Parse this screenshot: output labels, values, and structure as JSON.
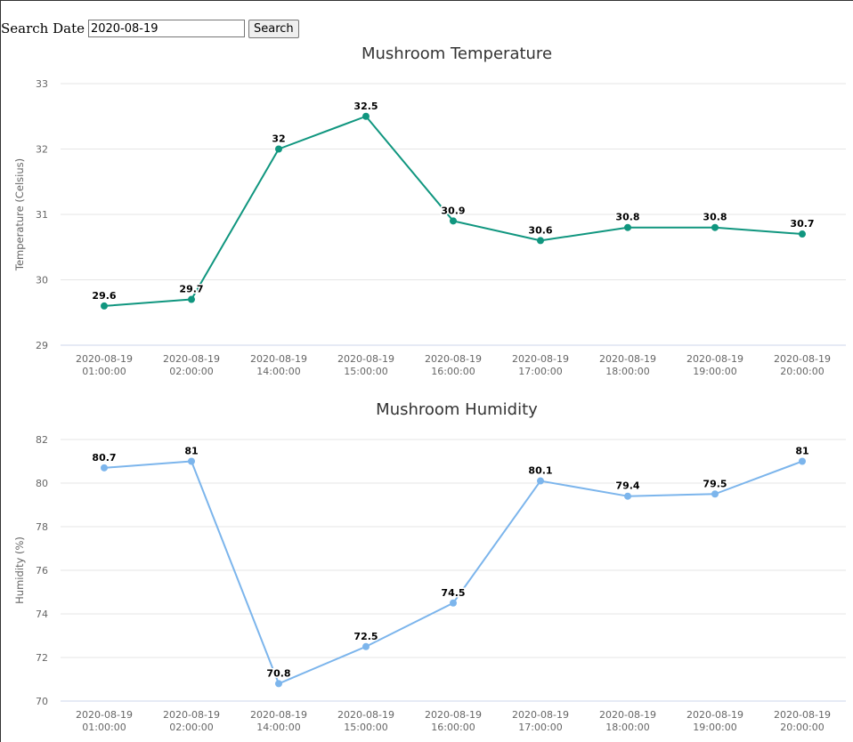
{
  "search": {
    "label": "Search Date",
    "value": "2020-08-19",
    "button_label": "Search"
  },
  "chart_data": [
    {
      "type": "line",
      "title": "Mushroom Temperature",
      "ylabel": "Temperature (Celsius)",
      "xlabel": "",
      "categories": [
        [
          "2020-08-19",
          "01:00:00"
        ],
        [
          "2020-08-19",
          "02:00:00"
        ],
        [
          "2020-08-19",
          "14:00:00"
        ],
        [
          "2020-08-19",
          "15:00:00"
        ],
        [
          "2020-08-19",
          "16:00:00"
        ],
        [
          "2020-08-19",
          "17:00:00"
        ],
        [
          "2020-08-19",
          "18:00:00"
        ],
        [
          "2020-08-19",
          "19:00:00"
        ],
        [
          "2020-08-19",
          "20:00:00"
        ]
      ],
      "values": [
        29.6,
        29.7,
        32,
        32.5,
        30.9,
        30.6,
        30.8,
        30.8,
        30.7
      ],
      "ylim": [
        29,
        33
      ],
      "yticks": [
        29,
        30,
        31,
        32,
        33
      ],
      "color": "#10967f",
      "grid": true,
      "data_labels": true
    },
    {
      "type": "line",
      "title": "Mushroom Humidity",
      "ylabel": "Humidity (%)",
      "xlabel": "",
      "categories": [
        [
          "2020-08-19",
          "01:00:00"
        ],
        [
          "2020-08-19",
          "02:00:00"
        ],
        [
          "2020-08-19",
          "14:00:00"
        ],
        [
          "2020-08-19",
          "15:00:00"
        ],
        [
          "2020-08-19",
          "16:00:00"
        ],
        [
          "2020-08-19",
          "17:00:00"
        ],
        [
          "2020-08-19",
          "18:00:00"
        ],
        [
          "2020-08-19",
          "19:00:00"
        ],
        [
          "2020-08-19",
          "20:00:00"
        ]
      ],
      "values": [
        80.7,
        81,
        70.8,
        72.5,
        74.5,
        80.1,
        79.4,
        79.5,
        81
      ],
      "ylim": [
        70,
        82
      ],
      "yticks": [
        70,
        72,
        74,
        76,
        78,
        80,
        82
      ],
      "color": "#7cb5ec",
      "grid": true,
      "data_labels": true
    }
  ]
}
